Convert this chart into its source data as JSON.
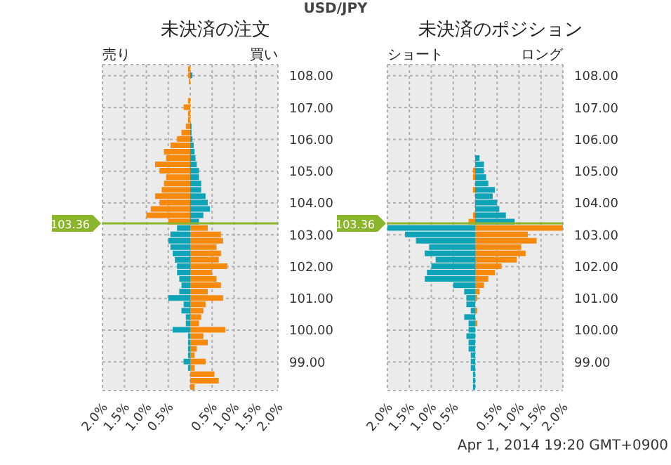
{
  "chart_data": [
    {
      "type": "bar",
      "orientation": "horizontal",
      "stacked": true,
      "title": "USD/JPY",
      "subtitle": "未決済の注文",
      "annotations": [
        "売り",
        "買い"
      ],
      "x": [
        98.2,
        98.4,
        98.6,
        98.8,
        99.0,
        99.2,
        99.4,
        99.6,
        99.8,
        100.0,
        100.2,
        100.4,
        100.6,
        100.8,
        101.0,
        101.2,
        101.4,
        101.6,
        101.8,
        102.0,
        102.2,
        102.4,
        102.6,
        102.8,
        103.0,
        103.2,
        103.4,
        103.6,
        103.8,
        104.0,
        104.2,
        104.4,
        104.6,
        104.8,
        105.0,
        105.2,
        105.4,
        105.6,
        105.8,
        106.0,
        106.2,
        106.4,
        106.6,
        106.8,
        107.0,
        107.2,
        107.4,
        107.6,
        107.8,
        108.0,
        108.2
      ],
      "series": [
        {
          "color": "#f7890c",
          "values": [
            0.1,
            0.65,
            0.55,
            0.1,
            0.35,
            0.1,
            0.15,
            0.4,
            0.3,
            0.8,
            0.2,
            0.25,
            0.3,
            0.35,
            0.75,
            0.4,
            0.7,
            0.6,
            0.5,
            0.85,
            0.65,
            0.7,
            0.6,
            0.75,
            0.7,
            0.4,
            -0.5,
            -1.0,
            -0.9,
            -0.7,
            -0.8,
            -0.65,
            -0.6,
            -0.55,
            -0.7,
            -0.8,
            -0.55,
            -0.6,
            -0.45,
            -0.3,
            -0.2,
            -0.1,
            -0.05,
            -0.05,
            -0.15,
            -0.05,
            null,
            null,
            -0.03,
            -0.05,
            -0.05
          ]
        },
        {
          "color": "#0fa3b8",
          "values": [
            null,
            null,
            null,
            -0.05,
            -0.15,
            -0.05,
            -0.05,
            -0.05,
            -0.05,
            -0.4,
            -0.1,
            -0.1,
            -0.2,
            -0.15,
            -0.5,
            -0.25,
            -0.2,
            -0.25,
            -0.3,
            -0.3,
            -0.35,
            -0.4,
            -0.45,
            -0.5,
            -0.45,
            -0.3,
            0.2,
            0.3,
            0.45,
            0.4,
            0.35,
            0.25,
            0.25,
            0.2,
            0.2,
            0.15,
            0.12,
            0.1,
            0.08,
            0.05,
            0.03,
            0.03,
            null,
            null,
            null,
            null,
            null,
            null,
            null,
            0.05,
            null
          ]
        }
      ],
      "xlim": [
        -2,
        2
      ],
      "xticks": [
        {
          "value": -2,
          "label": "2.0%"
        },
        {
          "value": -1.5,
          "label": "1.5%"
        },
        {
          "value": -1,
          "label": "1.0%"
        },
        {
          "value": -0.5,
          "label": "0.5%"
        },
        {
          "value": 0,
          "label": null
        },
        {
          "value": 0.5,
          "label": "0.5%"
        },
        {
          "value": 1,
          "label": "1.0%"
        },
        {
          "value": 1.5,
          "label": "1.5%"
        },
        {
          "value": 2,
          "label": "2.0%"
        }
      ],
      "ylim": [
        98.1,
        108.35
      ],
      "yticks": [
        {
          "value": 99,
          "label": "99.00"
        },
        {
          "value": 100,
          "label": "100.00"
        },
        {
          "value": 101,
          "label": "101.00"
        },
        {
          "value": 102,
          "label": "102.00"
        },
        {
          "value": 103,
          "label": "103.00"
        },
        {
          "value": 104,
          "label": "104.00"
        },
        {
          "value": 105,
          "label": "105.00"
        },
        {
          "value": 106,
          "label": "106.00"
        },
        {
          "value": 107,
          "label": "107.00"
        },
        {
          "value": 108,
          "label": "108.00"
        }
      ],
      "grid": true,
      "ref_lines": [
        {
          "axis": "y",
          "value": 103.36,
          "label": "103.36",
          "color": "#8bb52a"
        }
      ]
    },
    {
      "type": "bar",
      "orientation": "horizontal",
      "stacked": true,
      "title": "未決済のポジション",
      "annotations": [
        "ショート",
        "ロング",
        "Apr 1, 2014 19:20 GMT+0900"
      ],
      "x": [
        98.2,
        98.4,
        98.6,
        98.8,
        99.0,
        99.2,
        99.4,
        99.6,
        99.8,
        100.0,
        100.2,
        100.4,
        100.6,
        100.8,
        101.0,
        101.2,
        101.4,
        101.6,
        101.8,
        102.0,
        102.2,
        102.4,
        102.6,
        102.8,
        103.0,
        103.2,
        103.4,
        103.6,
        103.8,
        104.0,
        104.2,
        104.4,
        104.6,
        104.8,
        105.0,
        105.2,
        105.4
      ],
      "series": [
        {
          "color": "#0fa3b8",
          "values": [
            -0.05,
            -0.05,
            -0.05,
            -0.1,
            -0.1,
            -0.1,
            -0.15,
            -0.15,
            -0.2,
            -0.15,
            -0.15,
            -0.25,
            -0.1,
            -0.2,
            -0.2,
            -0.25,
            -0.5,
            -1.15,
            -1.1,
            -1.0,
            -0.9,
            -1.15,
            -1.05,
            -1.35,
            -1.6,
            -2.0,
            0.9,
            0.7,
            0.55,
            0.5,
            0.4,
            0.45,
            0.3,
            0.25,
            0.2,
            0.2,
            0.1
          ]
        },
        {
          "color": "#f7890c",
          "values": [
            null,
            null,
            null,
            null,
            null,
            null,
            null,
            null,
            null,
            null,
            0.05,
            null,
            0.05,
            null,
            0.05,
            0.1,
            0.2,
            0.3,
            0.45,
            0.6,
            0.95,
            1.15,
            1.05,
            1.4,
            1.2,
            2.0,
            -0.15,
            -0.05,
            null,
            null,
            null,
            -0.05,
            null,
            -0.05,
            -0.05,
            null,
            null
          ]
        }
      ],
      "xlim": [
        -2,
        2
      ],
      "xticks": [
        {
          "value": -2,
          "label": "2.0%"
        },
        {
          "value": -1.5,
          "label": "1.5%"
        },
        {
          "value": -1,
          "label": "1.0%"
        },
        {
          "value": -0.5,
          "label": "0.5%"
        },
        {
          "value": 0,
          "label": null
        },
        {
          "value": 0.5,
          "label": "0.5%"
        },
        {
          "value": 1,
          "label": "1.0%"
        },
        {
          "value": 1.5,
          "label": "1.5%"
        },
        {
          "value": 2,
          "label": "2.0%"
        }
      ],
      "ylim": [
        98.1,
        108.35
      ],
      "yticks": [
        {
          "value": 99,
          "label": "99.00"
        },
        {
          "value": 100,
          "label": "100.00"
        },
        {
          "value": 101,
          "label": "101.00"
        },
        {
          "value": 102,
          "label": "102.00"
        },
        {
          "value": 103,
          "label": "103.00"
        },
        {
          "value": 104,
          "label": "104.00"
        },
        {
          "value": 105,
          "label": "105.00"
        },
        {
          "value": 106,
          "label": "106.00"
        },
        {
          "value": 107,
          "label": "107.00"
        },
        {
          "value": 108,
          "label": "108.00"
        }
      ],
      "grid": true,
      "ref_lines": [
        {
          "axis": "y",
          "value": 103.36,
          "label": "103.36",
          "color": "#8bb52a"
        }
      ]
    }
  ]
}
